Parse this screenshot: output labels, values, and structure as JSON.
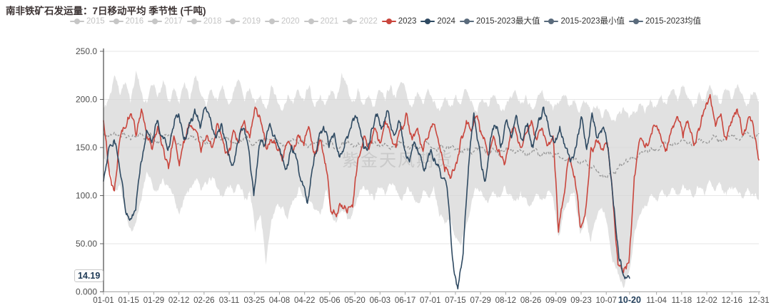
{
  "title": "南非铁矿石发运量：7日移动平均 季节性 (千吨)",
  "legend": {
    "items": [
      {
        "label": "2015",
        "active": false,
        "color": "#c6c6c6"
      },
      {
        "label": "2016",
        "active": false,
        "color": "#c6c6c6"
      },
      {
        "label": "2017",
        "active": false,
        "color": "#c6c6c6"
      },
      {
        "label": "2018",
        "active": false,
        "color": "#c6c6c6"
      },
      {
        "label": "2019",
        "active": false,
        "color": "#c6c6c6"
      },
      {
        "label": "2020",
        "active": false,
        "color": "#c6c6c6"
      },
      {
        "label": "2021",
        "active": false,
        "color": "#c6c6c6"
      },
      {
        "label": "2022",
        "active": false,
        "color": "#c6c6c6"
      },
      {
        "label": "2023",
        "active": true,
        "color": "#c9463d"
      },
      {
        "label": "2024",
        "active": true,
        "color": "#2f4a62"
      },
      {
        "label": "2015-2023最大值",
        "active": true,
        "color": "#5a6b7c"
      },
      {
        "label": "2015-2023最小值",
        "active": true,
        "color": "#5a6b7c"
      },
      {
        "label": "2015-2023均值",
        "active": true,
        "color": "#5a6b7c"
      }
    ]
  },
  "chart_data": {
    "type": "line",
    "title": "南非铁矿石发运量：7日移动平均 季节性 (千吨)",
    "watermark": "紫金天风期货",
    "latest_value_label": "14.19",
    "total_days": 365,
    "style": {
      "jitter_iterations": 3,
      "jitter_amps": [
        5,
        3,
        2
      ]
    },
    "y_axis": {
      "min": 0,
      "max": 250,
      "tick_values": [
        0,
        50,
        100,
        150,
        200,
        250
      ],
      "tick_labels": [
        "0.000",
        "50.00",
        "100.0",
        "150.0",
        "200.0",
        "250.0"
      ]
    },
    "x_axis": {
      "ticks": [
        {
          "label": "01-01",
          "day": 0
        },
        {
          "label": "01-15",
          "day": 14
        },
        {
          "label": "01-29",
          "day": 28
        },
        {
          "label": "02-12",
          "day": 42
        },
        {
          "label": "02-26",
          "day": 56
        },
        {
          "label": "03-11",
          "day": 70
        },
        {
          "label": "03-25",
          "day": 84
        },
        {
          "label": "04-08",
          "day": 98
        },
        {
          "label": "04-22",
          "day": 112
        },
        {
          "label": "05-06",
          "day": 126
        },
        {
          "label": "05-20",
          "day": 140
        },
        {
          "label": "06-03",
          "day": 154
        },
        {
          "label": "06-17",
          "day": 168
        },
        {
          "label": "07-01",
          "day": 182
        },
        {
          "label": "07-15",
          "day": 196
        },
        {
          "label": "07-29",
          "day": 210
        },
        {
          "label": "08-12",
          "day": 224
        },
        {
          "label": "08-26",
          "day": 238
        },
        {
          "label": "09-09",
          "day": 252
        },
        {
          "label": "09-23",
          "day": 266
        },
        {
          "label": "10-07",
          "day": 280
        },
        {
          "label": "10-20",
          "day": 293,
          "highlight": true
        },
        {
          "label": "11-04",
          "day": 308
        },
        {
          "label": "11-18",
          "day": 322
        },
        {
          "label": "12-02",
          "day": 336
        },
        {
          "label": "12-16",
          "day": 350
        },
        {
          "label": "12-31",
          "day": 365
        }
      ]
    },
    "band": {
      "name": "2015-2023最大值/最小值",
      "color": "#d6d6d6",
      "end_day": 365,
      "seed": 7,
      "jitter_scale": 1,
      "max": [
        192,
        200,
        225,
        205,
        218,
        196,
        230,
        208,
        196,
        215,
        202,
        220,
        198,
        212,
        195,
        218,
        200,
        225,
        205,
        192,
        210,
        198,
        215,
        196,
        208,
        220,
        198,
        212,
        196,
        205,
        190,
        215,
        200,
        188,
        205,
        195,
        210,
        198,
        215,
        192,
        205,
        195,
        210,
        200,
        228,
        215,
        198,
        212,
        195,
        205,
        192,
        210,
        198,
        215,
        202,
        218,
        205,
        192,
        208,
        195,
        210,
        198,
        188,
        202,
        192,
        205,
        195,
        210,
        198,
        185,
        200,
        192,
        205,
        195,
        188,
        202,
        210,
        195,
        205,
        192,
        200,
        210,
        198,
        188,
        195,
        205,
        192,
        200,
        188,
        196,
        185,
        192,
        180,
        188,
        178,
        185,
        192,
        180,
        188,
        195,
        185,
        200,
        192,
        205,
        195,
        210,
        198,
        215,
        202,
        192,
        208,
        198,
        215,
        205,
        195,
        210,
        200,
        215,
        205,
        195,
        208,
        198
      ],
      "min": [
        140,
        125,
        105,
        112,
        88,
        66,
        72,
        95,
        125,
        112,
        105,
        118,
        110,
        100,
        80,
        100,
        108,
        115,
        105,
        112,
        118,
        108,
        98,
        110,
        102,
        112,
        95,
        105,
        62,
        80,
        28,
        75,
        90,
        88,
        75,
        95,
        108,
        98,
        95,
        85,
        80,
        105,
        80,
        72,
        85,
        75,
        82,
        98,
        110,
        102,
        95,
        108,
        100,
        112,
        105,
        95,
        108,
        100,
        92,
        105,
        98,
        110,
        78,
        70,
        75,
        55,
        48,
        70,
        95,
        108,
        100,
        92,
        105,
        98,
        110,
        102,
        95,
        105,
        98,
        90,
        102,
        95,
        105,
        98,
        58,
        85,
        95,
        102,
        60,
        80,
        52,
        75,
        88,
        70,
        30,
        18,
        4,
        20,
        60,
        80,
        90,
        100,
        95,
        105,
        98,
        108,
        100,
        112,
        105,
        98,
        108,
        100,
        115,
        105,
        112,
        100,
        110,
        105,
        98,
        108,
        100,
        95
      ]
    },
    "mean": {
      "name": "2015-2023均值",
      "color": "#979797",
      "end_day": 365,
      "seed": 3,
      "jitter_scale": 0.8,
      "values": [
        165,
        162,
        166,
        160,
        163,
        158,
        161,
        164,
        159,
        162,
        157,
        160,
        163,
        158,
        155,
        159,
        162,
        158,
        161,
        156,
        159,
        163,
        157,
        160,
        155,
        158,
        161,
        156,
        153,
        157,
        160,
        155,
        158,
        152,
        156,
        159,
        154,
        157,
        151,
        155,
        158,
        153,
        156,
        150,
        154,
        157,
        152,
        155,
        149,
        153,
        156,
        151,
        154,
        148,
        152,
        155,
        150,
        153,
        147,
        151,
        154,
        149,
        152,
        146,
        150,
        148,
        145,
        149,
        143,
        147,
        150,
        145,
        148,
        142,
        146,
        149,
        144,
        147,
        141,
        145,
        148,
        143,
        146,
        140,
        144,
        138,
        135,
        139,
        133,
        137,
        130,
        126,
        122,
        118,
        124,
        128,
        132,
        136,
        140,
        144,
        147,
        150,
        148,
        152,
        155,
        151,
        154,
        157,
        153,
        156,
        159,
        155,
        158,
        161,
        157,
        160,
        163,
        159,
        162,
        165,
        161,
        164
      ]
    },
    "series": [
      {
        "name": "2023",
        "color": "#c9463d",
        "end_day": 365,
        "seed": 11,
        "jitter_scale": 1.2,
        "values": [
          178,
          128,
          105,
          158,
          170,
          185,
          162,
          190,
          160,
          148,
          172,
          150,
          128,
          162,
          131,
          158,
          173,
          168,
          145,
          162,
          150,
          175,
          158,
          142,
          168,
          155,
          178,
          160,
          192,
          178,
          150,
          158,
          148,
          136,
          155,
          147,
          163,
          152,
          170,
          141,
          157,
          133,
          83,
          78,
          90,
          82,
          88,
          139,
          160,
          148,
          170,
          155,
          178,
          163,
          150,
          172,
          185,
          158,
          170,
          146,
          160,
          174,
          152,
          125,
          118,
          132,
          160,
          178,
          168,
          183,
          162,
          142,
          162,
          148,
          132,
          158,
          170,
          150,
          165,
          178,
          158,
          170,
          152,
          162,
          62,
          100,
          140,
          120,
          68,
          85,
          150,
          158,
          148,
          155,
          100,
          28,
          20,
          30,
          120,
          158,
          150,
          162,
          172,
          158,
          147,
          170,
          182,
          160,
          175,
          152,
          168,
          190,
          205,
          172,
          185,
          158,
          176,
          190,
          163,
          180,
          172,
          137
        ]
      },
      {
        "name": "2024",
        "color": "#2f4a62",
        "end_day": 293,
        "seed": 23,
        "jitter_scale": 1.2,
        "values": [
          115,
          150,
          158,
          128,
          88,
          76,
          85,
          135,
          168,
          155,
          178,
          162,
          147,
          170,
          185,
          158,
          176,
          190,
          170,
          192,
          178,
          160,
          175,
          150,
          132,
          155,
          170,
          150,
          100,
          152,
          152,
          175,
          160,
          143,
          128,
          152,
          138,
          115,
          92,
          130,
          158,
          172,
          150,
          165,
          140,
          157,
          170,
          182,
          162,
          148,
          170,
          185,
          172,
          188,
          165,
          178,
          150,
          135,
          155,
          142,
          128,
          148,
          132,
          118,
          108,
          35,
          3,
          40,
          130,
          186,
          150,
          115,
          155,
          172,
          150,
          178,
          160,
          182,
          158,
          175,
          150,
          178,
          192,
          168,
          155,
          172,
          150,
          135,
          150,
          182,
          148,
          186,
          160,
          170,
          150,
          90,
          35,
          16,
          14.19
        ]
      }
    ]
  }
}
